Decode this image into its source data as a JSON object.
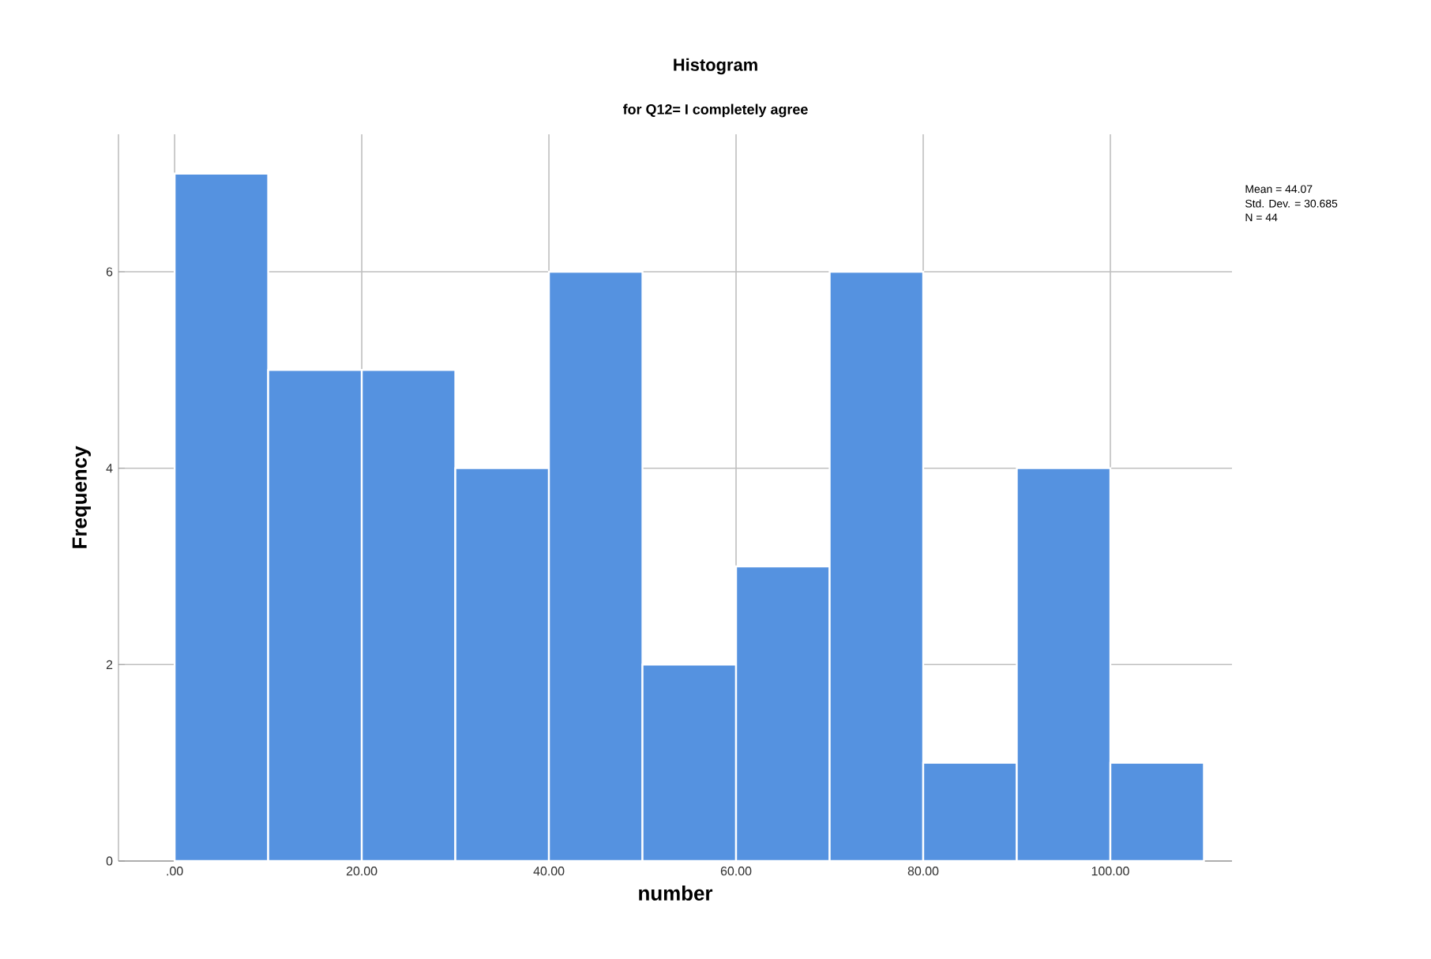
{
  "chart_data": {
    "type": "histogram",
    "title": "Histogram",
    "subtitle": "for Q12= I completely agree",
    "xlabel": "number",
    "ylabel": "Frequency",
    "bins": [
      0,
      10,
      20,
      30,
      40,
      50,
      60,
      70,
      80,
      90,
      100,
      110
    ],
    "values": [
      7,
      5,
      5,
      4,
      6,
      2,
      3,
      6,
      1,
      4,
      1
    ],
    "color": "#5592e0",
    "xlim": [
      -6,
      113
    ],
    "ylim": [
      0,
      7.4
    ],
    "xticks": [
      {
        "value": 0,
        "label": ".00"
      },
      {
        "value": 20,
        "label": "20.00"
      },
      {
        "value": 40,
        "label": "40.00"
      },
      {
        "value": 60,
        "label": "60.00"
      },
      {
        "value": 80,
        "label": "80.00"
      },
      {
        "value": 100,
        "label": "100.00"
      }
    ],
    "yticks": [
      0,
      2,
      4,
      6
    ],
    "grid": true,
    "annotations": [
      "Mean = 44.07",
      "Std. Dev. = 30.685",
      "N = 44"
    ]
  }
}
